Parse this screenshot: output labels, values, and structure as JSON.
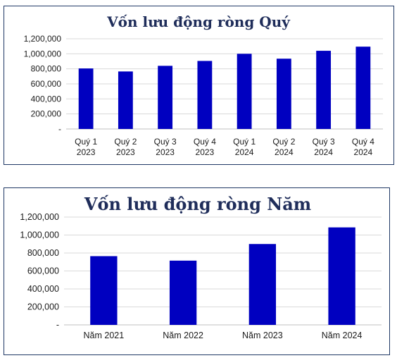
{
  "chart_data": [
    {
      "type": "bar",
      "title": "Vốn lưu động ròng Quý",
      "categories": [
        "Quý 1 2023",
        "Quý 2 2023",
        "Quý 3 2023",
        "Quý 4 2023",
        "Quý 1 2024",
        "Quý 2 2024",
        "Quý 3 2024",
        "Quý 4 2024"
      ],
      "category_lines": [
        [
          "Quý 1",
          "2023"
        ],
        [
          "Quý 2",
          "2023"
        ],
        [
          "Quý 3",
          "2023"
        ],
        [
          "Quý 4",
          "2023"
        ],
        [
          "Quý 1",
          "2024"
        ],
        [
          "Quý 2",
          "2024"
        ],
        [
          "Quý 3",
          "2024"
        ],
        [
          "Quý 4",
          "2024"
        ]
      ],
      "values": [
        805000,
        765000,
        840000,
        905000,
        1000000,
        935000,
        1040000,
        1095000
      ],
      "y_ticks": [
        "-",
        "200,000",
        "400,000",
        "600,000",
        "800,000",
        "1,000,000",
        "1,200,000"
      ],
      "ylim": [
        0,
        1200000
      ],
      "grid": true,
      "bar_color": "#0000c0"
    },
    {
      "type": "bar",
      "title": "Vốn lưu động ròng Năm",
      "categories": [
        "Năm 2021",
        "Năm 2022",
        "Năm 2023",
        "Năm 2024"
      ],
      "category_lines": [
        [
          "Năm 2021"
        ],
        [
          "Năm 2022"
        ],
        [
          "Năm 2023"
        ],
        [
          "Năm 2024"
        ]
      ],
      "values": [
        765000,
        715000,
        900000,
        1085000
      ],
      "y_ticks": [
        "-",
        "200,000",
        "400,000",
        "600,000",
        "800,000",
        "1,000,000",
        "1,200,000"
      ],
      "ylim": [
        0,
        1200000
      ],
      "grid": true,
      "bar_color": "#0000c0"
    }
  ]
}
